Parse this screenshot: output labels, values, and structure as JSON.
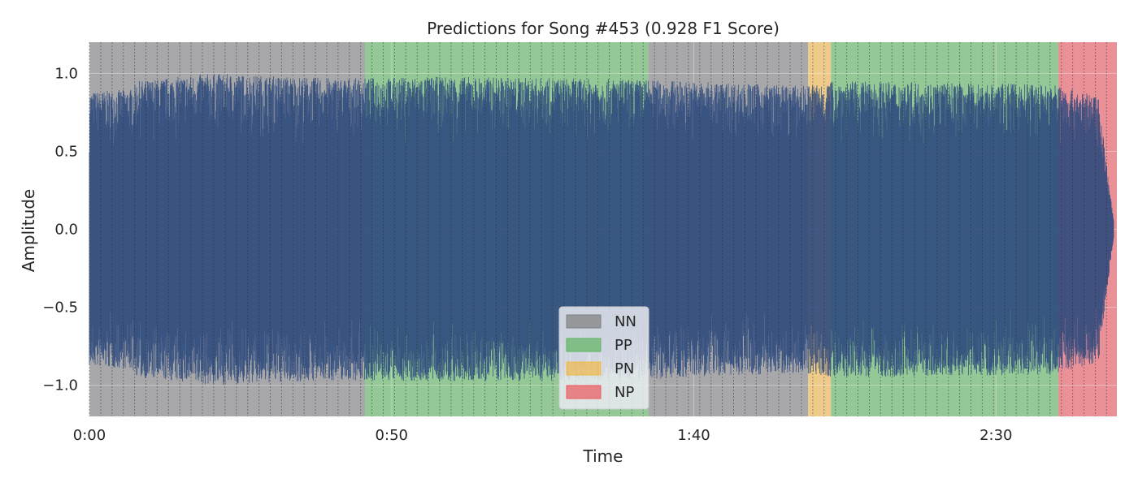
{
  "chart_data": {
    "type": "area",
    "title": "Predictions for Song #453 (0.928 F1 Score)",
    "xlabel": "Time",
    "ylabel": "Amplitude",
    "xlim": [
      0,
      170
    ],
    "ylim": [
      -1.2,
      1.2
    ],
    "x_ticks": [
      {
        "value": 0,
        "label": "0:00"
      },
      {
        "value": 50,
        "label": "0:50"
      },
      {
        "value": 100,
        "label": "1:40"
      },
      {
        "value": 150,
        "label": "2:30"
      }
    ],
    "y_ticks": [
      {
        "value": 1.0,
        "label": "1.0"
      },
      {
        "value": 0.5,
        "label": "0.5"
      },
      {
        "value": 0.0,
        "label": "0.0"
      },
      {
        "value": -0.5,
        "label": "−0.5"
      },
      {
        "value": -1.0,
        "label": "−1.0"
      }
    ],
    "grid": true,
    "legend_position": "lower-center",
    "legend": [
      {
        "label": "NN",
        "color": "#7f7f7f"
      },
      {
        "label": "PP",
        "color": "#5fb35f"
      },
      {
        "label": "PN",
        "color": "#f0b84a"
      },
      {
        "label": "NP",
        "color": "#ea5a5f"
      }
    ],
    "segments": [
      {
        "class": "NN",
        "start": 0,
        "end": 45.6
      },
      {
        "class": "PP",
        "start": 45.6,
        "end": 92.5
      },
      {
        "class": "NN",
        "start": 92.5,
        "end": 118.9
      },
      {
        "class": "PN",
        "start": 118.9,
        "end": 122.7
      },
      {
        "class": "PP",
        "start": 122.7,
        "end": 160.3
      },
      {
        "class": "NP",
        "start": 160.3,
        "end": 170
      }
    ],
    "waveform": {
      "color": "#2e4a7d",
      "envelope_points": [
        [
          0,
          0.88
        ],
        [
          7,
          0.9
        ],
        [
          8,
          0.95
        ],
        [
          20,
          1.0
        ],
        [
          40,
          0.97
        ],
        [
          45.6,
          0.97
        ],
        [
          60,
          0.98
        ],
        [
          92.5,
          0.96
        ],
        [
          118,
          0.92
        ],
        [
          122.7,
          0.95
        ],
        [
          160,
          0.93
        ],
        [
          167,
          0.85
        ],
        [
          168.5,
          0.35
        ],
        [
          169.5,
          0.05
        ]
      ]
    },
    "beat_markers": {
      "start": 0,
      "end": 170,
      "interval": 1.87
    }
  }
}
